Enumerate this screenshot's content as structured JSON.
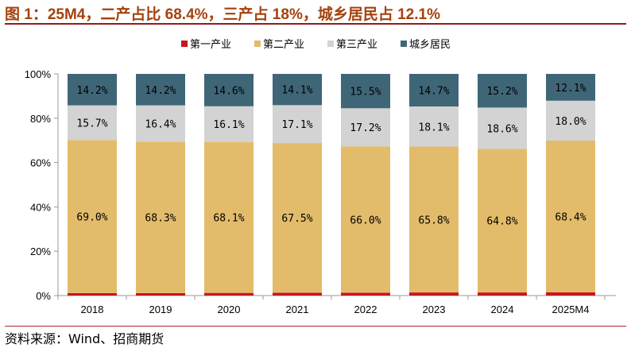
{
  "title": "图 1：25M4，二产占比 68.4%，三产占 18%，城乡居民占 12.1%",
  "source": "资料来源：Wind、招商期货",
  "chart_data": {
    "type": "bar",
    "stacked": true,
    "categories": [
      "2018",
      "2019",
      "2020",
      "2021",
      "2022",
      "2023",
      "2024",
      "2025M4"
    ],
    "series": [
      {
        "name": "第一产业",
        "color": "#c8161d",
        "values": [
          1.1,
          1.1,
          1.2,
          1.3,
          1.3,
          1.4,
          1.4,
          1.5
        ],
        "labels": null
      },
      {
        "name": "第二产业",
        "color": "#e3bc6b",
        "values": [
          69.0,
          68.3,
          68.1,
          67.5,
          66.0,
          65.8,
          64.8,
          68.4
        ],
        "labels": [
          "69.0%",
          "68.3%",
          "68.1%",
          "67.5%",
          "66.0%",
          "65.8%",
          "64.8%",
          "68.4%"
        ]
      },
      {
        "name": "第三产业",
        "color": "#d3d3d3",
        "values": [
          15.7,
          16.4,
          16.1,
          17.1,
          17.2,
          18.1,
          18.6,
          18.0
        ],
        "labels": [
          "15.7%",
          "16.4%",
          "16.1%",
          "17.1%",
          "17.2%",
          "18.1%",
          "18.6%",
          "18.0%"
        ]
      },
      {
        "name": "城乡居民",
        "color": "#3f6677",
        "values": [
          14.2,
          14.2,
          14.6,
          14.1,
          15.5,
          14.7,
          15.2,
          12.1
        ],
        "labels": [
          "14.2%",
          "14.2%",
          "14.6%",
          "14.1%",
          "15.5%",
          "14.7%",
          "15.2%",
          "12.1%"
        ]
      }
    ],
    "yticks": [
      "0%",
      "20%",
      "40%",
      "60%",
      "80%",
      "100%"
    ],
    "ylim": [
      0,
      100
    ],
    "legend": "top-right"
  }
}
